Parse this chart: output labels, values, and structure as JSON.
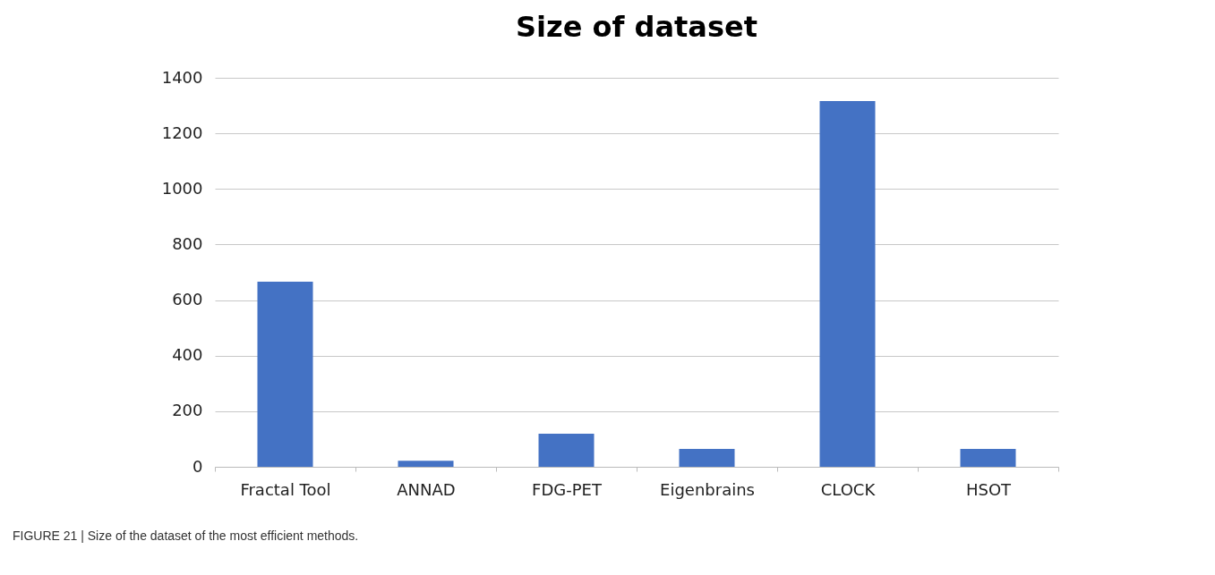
{
  "chart_data": {
    "type": "bar",
    "title": "Size of dataset",
    "categories": [
      "Fractal Tool",
      "ANNAD",
      "FDG-PET",
      "Eigenbrains",
      "CLOCK",
      "HSOT"
    ],
    "values": [
      666,
      22,
      119,
      64,
      1316,
      64
    ],
    "color": "#4472c4",
    "ylim": [
      0,
      1400
    ],
    "yticks": [
      0,
      200,
      400,
      600,
      800,
      1000,
      1200,
      1400
    ],
    "grid": "y",
    "annotations": [
      "FIGURE 21 | Size of the dataset of the most efficient methods."
    ]
  }
}
